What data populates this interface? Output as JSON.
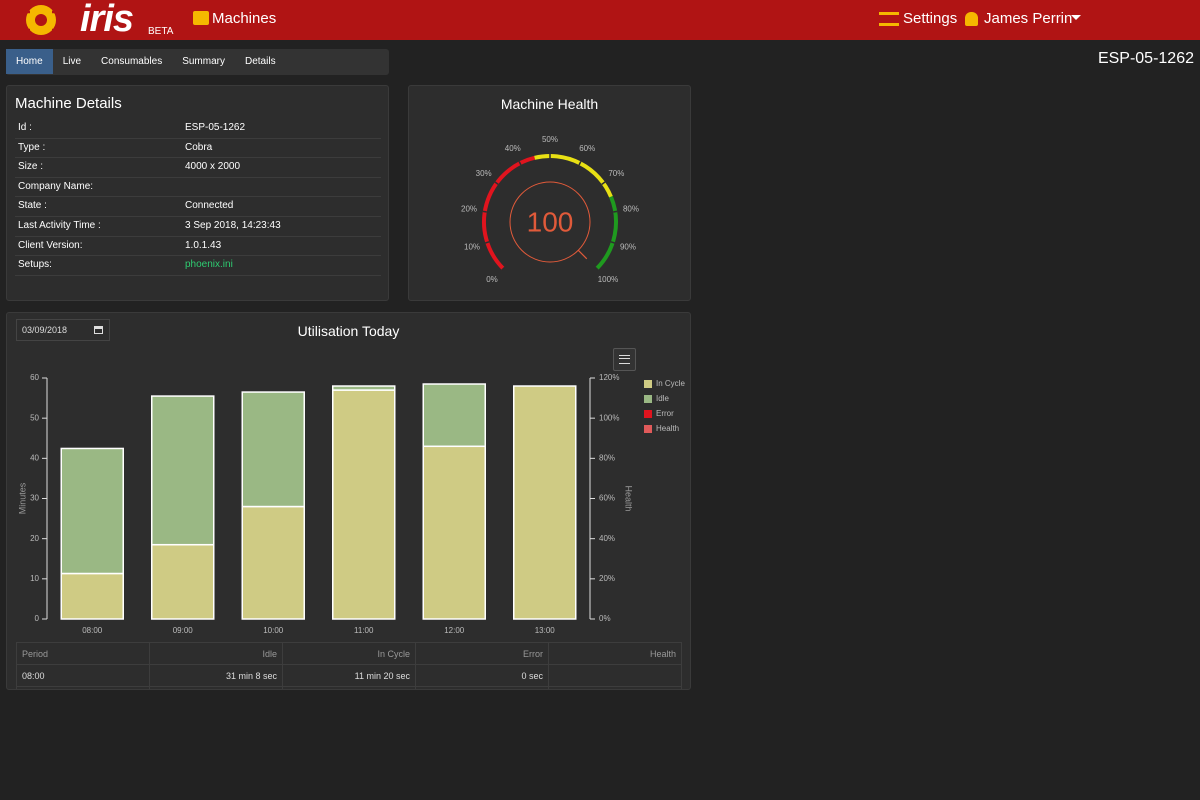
{
  "header": {
    "logo": "iris",
    "badge": "BETA",
    "nav": "Machines",
    "settings": "Settings",
    "user": "James Perrin"
  },
  "tabs": [
    "Home",
    "Live",
    "Consumables",
    "Summary",
    "Details"
  ],
  "machine_id": "ESP-05-1262",
  "details": {
    "title": "Machine Details",
    "rows": [
      [
        "Id :",
        "ESP-05-1262"
      ],
      [
        "Type :",
        "Cobra"
      ],
      [
        "Size :",
        "4000 x 2000"
      ],
      [
        "Company Name:"
      ],
      [
        "State :",
        "Connected"
      ],
      [
        "Last Activity Time :",
        "3 Sep 2018, 14:23:43"
      ],
      [
        "Client Version:",
        "1.0.1.43"
      ],
      [
        "Setups:",
        "phoenix.ini"
      ]
    ]
  },
  "health": {
    "title": "Machine Health",
    "value": 100,
    "range": [
      0,
      100
    ],
    "ticks": [
      {
        "value": 0,
        "label": "0%"
      },
      {
        "value": 10,
        "label": "10%"
      },
      {
        "value": 20,
        "label": "20%"
      },
      {
        "value": 30,
        "label": "30%"
      },
      {
        "value": 40,
        "label": "40%"
      },
      {
        "value": 50,
        "label": "50%"
      },
      {
        "value": 60,
        "label": "60%"
      },
      {
        "value": 70,
        "label": "70%"
      },
      {
        "value": 80,
        "label": "80%"
      },
      {
        "value": 90,
        "label": "90%"
      },
      {
        "value": 100,
        "label": "100%"
      }
    ],
    "bands": [
      {
        "from": 0,
        "to": 45,
        "color": "#e0141e"
      },
      {
        "from": 45,
        "to": 75,
        "color": "#e8e014"
      },
      {
        "from": 75,
        "to": 100,
        "color": "#1f9a1f"
      }
    ]
  },
  "chart_data": {
    "type": "bar",
    "stacked": true,
    "title": "Utilisation Today",
    "date": "03/09/2018",
    "categories": [
      "08:00",
      "09:00",
      "10:00",
      "11:00",
      "12:00",
      "13:00"
    ],
    "series": [
      {
        "name": "In Cycle",
        "color": "#cfcb84",
        "values": [
          11.33,
          18.5,
          28,
          57,
          43,
          58
        ]
      },
      {
        "name": "Idle",
        "color": "#9ab884",
        "values": [
          31.13,
          37,
          28.5,
          1,
          15.5,
          0
        ]
      },
      {
        "name": "Error",
        "color": "#e0141e",
        "values": [
          0,
          0,
          0,
          0,
          0,
          0
        ]
      },
      {
        "name": "Health",
        "color": "#e05a5a",
        "axis": "y2",
        "values": [
          null,
          null,
          null,
          null,
          null,
          null
        ]
      }
    ],
    "ylabel": "Minutes",
    "y2label": "Health",
    "ylim": [
      0,
      60
    ],
    "yticks": [
      0,
      10,
      20,
      30,
      40,
      50,
      60
    ],
    "y2lim": [
      0,
      120
    ],
    "y2ticks": [
      {
        "value": 0,
        "label": "0%"
      },
      {
        "value": 20,
        "label": "20%"
      },
      {
        "value": 40,
        "label": "40%"
      },
      {
        "value": 60,
        "label": "60%"
      },
      {
        "value": 80,
        "label": "80%"
      },
      {
        "value": 100,
        "label": "100%"
      },
      {
        "value": 120,
        "label": "120%"
      }
    ]
  },
  "table": {
    "headers": [
      "Period",
      "Idle",
      "In Cycle",
      "Error",
      "Health"
    ],
    "rows": [
      [
        "08:00",
        "31 min 8 sec",
        "11 min 20 sec",
        "0 sec"
      ]
    ]
  }
}
